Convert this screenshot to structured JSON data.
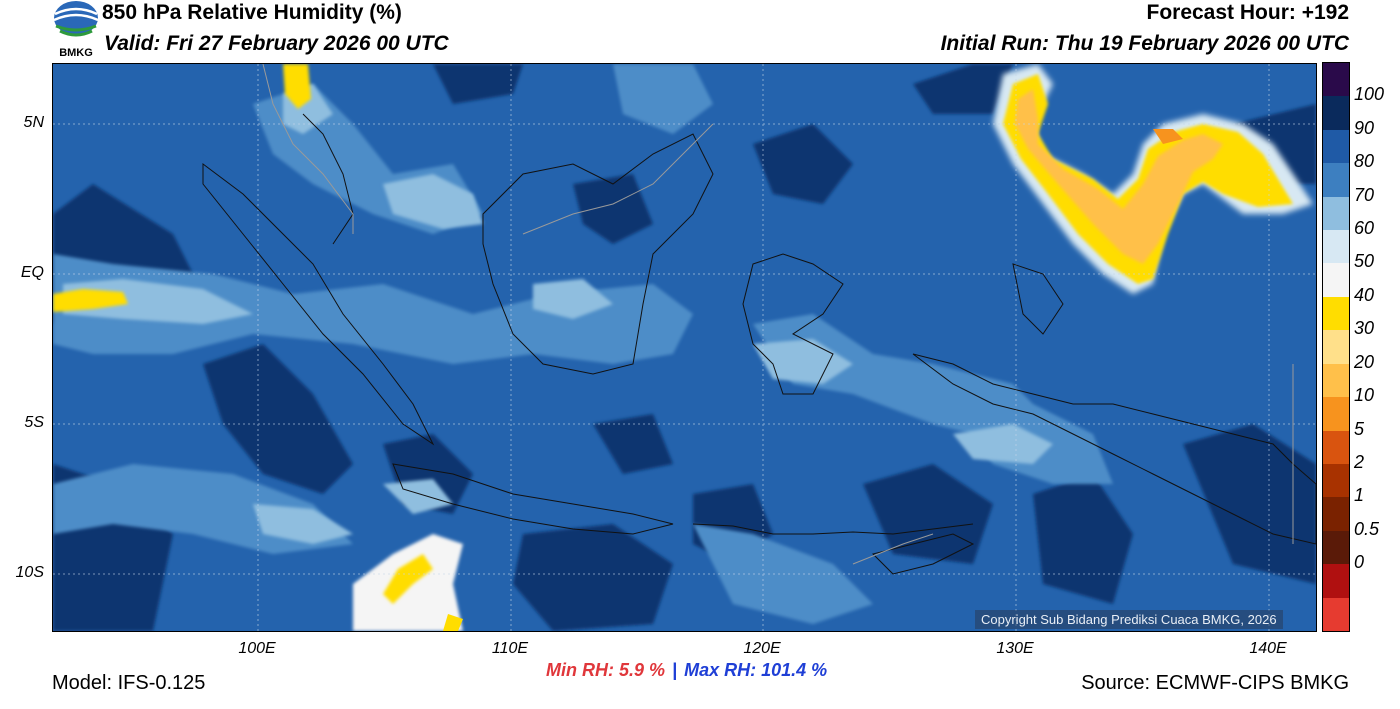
{
  "header": {
    "title": "850 hPa Relative Humidity (%)",
    "valid": "Valid: Fri 27 February 2026 00 UTC",
    "forecast_hour": "Forecast Hour: +192",
    "initial_run": "Initial Run: Thu 19 February 2026 00 UTC"
  },
  "logo": {
    "text": "BMKG"
  },
  "map": {
    "lat_labels": [
      "5N",
      "EQ",
      "5S",
      "10S"
    ],
    "lon_labels": [
      "100E",
      "110E",
      "120E",
      "130E",
      "140E"
    ],
    "copyright": "Copyright Sub Bidang Prediksi Cuaca BMKG, 2026"
  },
  "colorbar": {
    "labels": [
      "100",
      "90",
      "80",
      "70",
      "60",
      "50",
      "40",
      "30",
      "20",
      "10",
      "5",
      "2",
      "1",
      "0.5",
      "0"
    ],
    "colors": [
      "#2a0a4a",
      "#0a2a5c",
      "#1f5aa6",
      "#3d7fc0",
      "#8fbedf",
      "#d7e8f3",
      "#f5f5f5",
      "#ffdd00",
      "#ffe08a",
      "#ffc04a",
      "#f7931e",
      "#d9540f",
      "#a83200",
      "#7a2200",
      "#5a1a08",
      "#b01010",
      "#e63b30"
    ]
  },
  "stats": {
    "min_label": "Min RH:",
    "min_value": "5.9 %",
    "separator": "|",
    "max_label": "Max RH:",
    "max_value": "101.4 %"
  },
  "footer": {
    "model": "Model: IFS-0.125",
    "source": "Source: ECMWF-CIPS BMKG"
  }
}
